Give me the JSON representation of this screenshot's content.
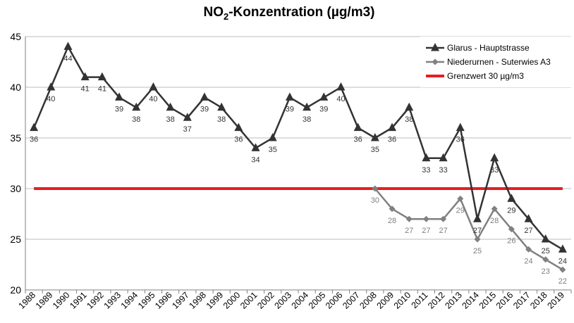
{
  "chart_data": {
    "type": "line",
    "title": {
      "prefix": "NO",
      "subscript": "2",
      "suffix": "-Konzentration (µg/m3)"
    },
    "xlabel": "",
    "ylabel": "",
    "ylim": [
      20,
      45
    ],
    "yticks": [
      "20",
      "25",
      "30",
      "35",
      "40",
      "45"
    ],
    "grid": "horizontal",
    "legend_position": "top-right",
    "categories": [
      "1988",
      "1989",
      "1990",
      "1991",
      "1992",
      "1993",
      "1994",
      "1995",
      "1996",
      "1997",
      "1998",
      "1999",
      "2000",
      "2001",
      "2002",
      "2003",
      "2004",
      "2005",
      "2006",
      "2007",
      "2008",
      "2009",
      "2010",
      "2011",
      "2012",
      "2013",
      "2014",
      "2015",
      "2016",
      "2017",
      "2018",
      "2019"
    ],
    "series": [
      {
        "name": "Glarus - Hauptstrasse",
        "color": "#333333",
        "marker": "triangle",
        "values": [
          36,
          40,
          44,
          41,
          41,
          39,
          38,
          40,
          38,
          37,
          39,
          38,
          36,
          34,
          35,
          39,
          38,
          39,
          40,
          36,
          35,
          36,
          38,
          33,
          33,
          36,
          27,
          33,
          29,
          27,
          25,
          24
        ],
        "labels": [
          "36",
          "40",
          "44",
          "41",
          "41",
          "39",
          "38",
          "40",
          "38",
          "37",
          "39",
          "38",
          "36",
          "34",
          "35",
          "39",
          "38",
          "39",
          "40",
          "36",
          "35",
          "36",
          "38",
          "33",
          "33",
          "36",
          "27",
          "33",
          "29",
          "27",
          "25",
          "24"
        ]
      },
      {
        "name": "Niederurnen - Suterwies A3",
        "color": "#808080",
        "marker": "diamond",
        "values": [
          null,
          null,
          null,
          null,
          null,
          null,
          null,
          null,
          null,
          null,
          null,
          null,
          null,
          null,
          null,
          null,
          null,
          null,
          null,
          null,
          30,
          28,
          27,
          27,
          27,
          29,
          25,
          28,
          26,
          24,
          23,
          22
        ],
        "labels": [
          "",
          "",
          "",
          "",
          "",
          "",
          "",
          "",
          "",
          "",
          "",
          "",
          "",
          "",
          "",
          "",
          "",
          "",
          "",
          "",
          "30",
          "28",
          "27",
          "27",
          "27",
          "29",
          "25",
          "28",
          "26",
          "24",
          "23",
          "22"
        ]
      },
      {
        "name": "Grenzwert 30 µg/m3",
        "color": "#e61e1e",
        "marker": "none",
        "values": [
          30,
          30,
          30,
          30,
          30,
          30,
          30,
          30,
          30,
          30,
          30,
          30,
          30,
          30,
          30,
          30,
          30,
          30,
          30,
          30,
          30,
          30,
          30,
          30,
          30,
          30,
          30,
          30,
          30,
          30,
          30,
          30
        ]
      }
    ]
  }
}
